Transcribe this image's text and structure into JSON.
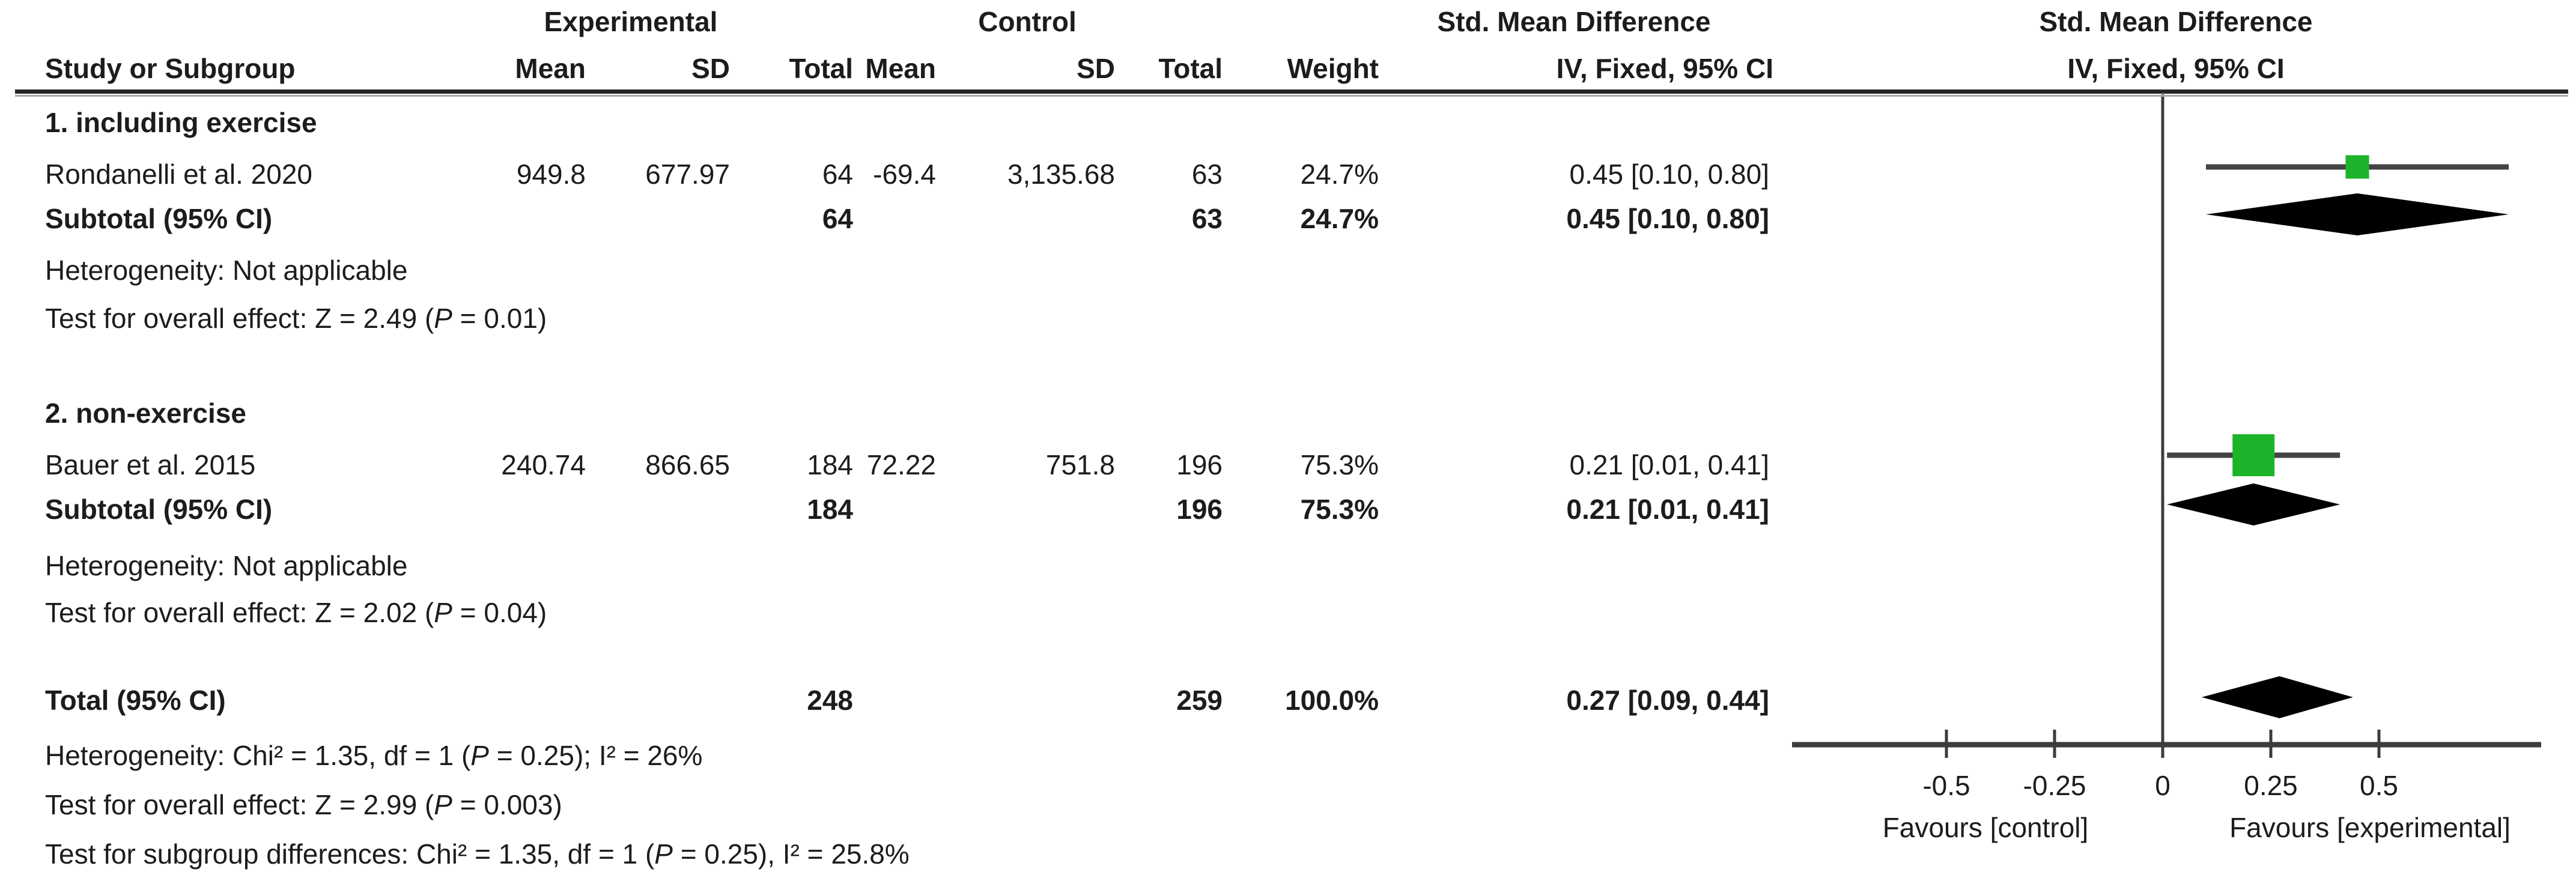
{
  "colors": {
    "square_green": "#1db32b",
    "diamond_black": "#000000",
    "whisker_gray": "#444444",
    "axis_gray": "#3c3c3c",
    "text": "#1c1c1c"
  },
  "header": {
    "experimental": "Experimental",
    "control": "Control",
    "smd_table": "Std. Mean Difference",
    "smd_plot": "Std. Mean Difference",
    "study_or_subgroup": "Study or Subgroup",
    "mean_exp": "Mean",
    "sd_exp": "SD",
    "total_exp": "Total",
    "mean_ctrl": "Mean",
    "sd_ctrl": "SD",
    "total_ctrl": "Total",
    "weight": "Weight",
    "iv_table": "IV, Fixed, 95% CI",
    "iv_plot": "IV, Fixed, 95% CI"
  },
  "group1": {
    "title": "1. including exercise",
    "study": {
      "name": "Rondanelli et al. 2020",
      "exp_mean": "949.8",
      "exp_sd": "677.97",
      "exp_total": "64",
      "ctrl_mean": "-69.4",
      "ctrl_sd": "3,135.68",
      "ctrl_total": "63",
      "weight": "24.7%",
      "ci": "0.45 [0.10, 0.80]"
    },
    "subtotal": {
      "label": "Subtotal (95% CI)",
      "exp_total": "64",
      "ctrl_total": "63",
      "weight": "24.7%",
      "ci": "0.45 [0.10, 0.80]"
    },
    "heterogeneity": "Heterogeneity: Not applicable",
    "overall": {
      "pre": "Test for overall effect: Z = 2.49 (",
      "p": "P",
      "post": " = 0.01)"
    }
  },
  "group2": {
    "title": "2. non-exercise",
    "study": {
      "name": "Bauer et al. 2015",
      "exp_mean": "240.74",
      "exp_sd": "866.65",
      "exp_total": "184",
      "ctrl_mean": "72.22",
      "ctrl_sd": "751.8",
      "ctrl_total": "196",
      "weight": "75.3%",
      "ci": "0.21 [0.01, 0.41]"
    },
    "subtotal": {
      "label": "Subtotal (95% CI)",
      "exp_total": "184",
      "ctrl_total": "196",
      "weight": "75.3%",
      "ci": "0.21 [0.01, 0.41]"
    },
    "heterogeneity": "Heterogeneity: Not applicable",
    "overall": {
      "pre": "Test for overall effect: Z = 2.02 (",
      "p": "P",
      "post": " = 0.04)"
    }
  },
  "total": {
    "label": "Total (95% CI)",
    "exp_total": "248",
    "ctrl_total": "259",
    "weight": "100.0%",
    "ci": "0.27 [0.09, 0.44]",
    "heterogeneity": {
      "pre": "Heterogeneity: Chi² = 1.35, df = 1 (",
      "p": "P",
      "post": " = 0.25); I² = 26%"
    },
    "overall": {
      "pre": "Test for overall effect: Z = 2.99 (",
      "p": "P",
      "post": " = 0.003)"
    },
    "subgroup_diff": {
      "pre": "Test for subgroup differences: Chi² = 1.35, df = 1 (",
      "p": "P",
      "post": " = 0.25), I² = 25.8%"
    }
  },
  "chart_data": {
    "type": "forest",
    "title": "Std. Mean Difference, IV, Fixed, 95% CI",
    "x_axis": {
      "ticks": [
        -0.5,
        -0.25,
        0,
        0.25,
        0.5
      ],
      "tick_labels": [
        "-0.5",
        "-0.25",
        "0",
        "0.25",
        "0.5"
      ],
      "left_label": "Favours [control]",
      "right_label": "Favours [experimental]",
      "xlim_drawn": [
        -0.86,
        0.87
      ],
      "grid": false
    },
    "points": [
      {
        "row": "Rondanelli et al. 2020",
        "type": "square",
        "est": 0.45,
        "ci_low": 0.1,
        "ci_high": 0.8,
        "weight_pct": 24.7
      },
      {
        "row": "Subtotal (95% CI) - including exercise",
        "type": "diamond",
        "est": 0.45,
        "ci_low": 0.1,
        "ci_high": 0.8,
        "weight_pct": 24.7
      },
      {
        "row": "Bauer et al. 2015",
        "type": "square",
        "est": 0.21,
        "ci_low": 0.01,
        "ci_high": 0.41,
        "weight_pct": 75.3
      },
      {
        "row": "Subtotal (95% CI) - non-exercise",
        "type": "diamond",
        "est": 0.21,
        "ci_low": 0.01,
        "ci_high": 0.41,
        "weight_pct": 75.3
      },
      {
        "row": "Total (95% CI)",
        "type": "diamond",
        "est": 0.27,
        "ci_low": 0.09,
        "ci_high": 0.44,
        "weight_pct": 100.0
      }
    ]
  }
}
